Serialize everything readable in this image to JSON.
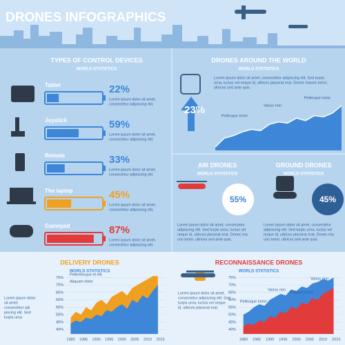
{
  "header": {
    "title": "DRONES INFOGRAPHICS"
  },
  "control_devices": {
    "title": "TYPES OF CONTROL DEVICES",
    "subtitle": "WORLD STATISTICS",
    "items": [
      {
        "name": "Tablet",
        "value": 22,
        "label": "22%",
        "color": "#3d86d8",
        "text": [
          "Lorem ipsum dolor sit amet,",
          "consectetur adipiscing elit."
        ]
      },
      {
        "name": "Joystick",
        "value": 59,
        "label": "59%",
        "color": "#3d86d8",
        "text": [
          "Lorem ipsum dolor sit amet,",
          "consectetur adipiscing elit."
        ]
      },
      {
        "name": "Remote",
        "value": 33,
        "label": "33%",
        "color": "#3d86d8",
        "text": [
          "Lorem ipsum dolor sit amet,",
          "consectetur adipiscing elit."
        ]
      },
      {
        "name": "The laptop",
        "value": 45,
        "label": "45%",
        "color": "#f0a020",
        "text": [
          "Lorem ipsum dolor sit amet,",
          "consectetur adipiscing elit."
        ]
      },
      {
        "name": "Gamepad",
        "value": 87,
        "label": "87%",
        "color": "#e23b3b",
        "text": [
          "Lorem ipsum dolor sit amet,",
          "consectetur adipiscing elit."
        ]
      }
    ]
  },
  "around_world": {
    "title": "DRONES AROUND THE WORLD",
    "subtitle": "WORLD STATISTICS",
    "text": [
      "Lorem ipsum dolor sit amet, consectetur adipiscing elit. Sed turpis",
      "urna, luctus vel neque id, ultrices placerat erat. Donec mauris tortor,",
      "ultrices sed ante quis."
    ],
    "label": "23%",
    "values": [
      20,
      34,
      38,
      44,
      48,
      46,
      56,
      60,
      58,
      66,
      62,
      70,
      68,
      74,
      86
    ],
    "annotations": [
      "Pellesque tortor",
      "Varius non",
      "Pellesque tortor"
    ]
  },
  "air": {
    "title": "AIR DRONES",
    "subtitle": "WORLD STATISTICS",
    "label": "55%",
    "text": [
      "Lorem ipsum dolor sit amet, consectetur",
      "adipiscing elit. Sed turpis urna, luctus vel",
      "neque id, ultrices placerat erat. Donec ma",
      "uris tortor, ultrices sed ante quis."
    ]
  },
  "ground": {
    "title": "GROUND DRONES",
    "subtitle": "WORLD STATISTICS",
    "label": "45%",
    "text": [
      "Lorem ipsum dolor sit amet, consectetur",
      "adipiscing elit. Sed turpis urna, luctus vel",
      "neque id, ultrices placerat erat. Donec ma",
      "uris tortor, ultrices sed ante quis."
    ]
  },
  "delivery": {
    "title": "DELIVERY DRONES",
    "subtitle": "WORLD STATISTICS",
    "text": [
      "Lorem ipsum dolor",
      "sit amet,",
      "consectetur adi",
      "piscing elit. Sed",
      "turpis urna"
    ],
    "annotations": [
      "Pellentesque et elit.",
      "Aliquam dolor"
    ],
    "chart": {
      "type": "area",
      "x": [
        1980,
        1982,
        1984,
        1986,
        1988,
        1990,
        1992,
        1994,
        1996,
        1998,
        2000,
        2002,
        2004,
        2006,
        2008,
        2010,
        2012,
        2014
      ],
      "series": [
        {
          "color": "#f0a020",
          "values": [
            48,
            52,
            50,
            55,
            53,
            58,
            60,
            57,
            62,
            64,
            66,
            63,
            68,
            70,
            72,
            74,
            76,
            76
          ]
        },
        {
          "color": "#3d86d8",
          "values": [
            44,
            46,
            45,
            48,
            47,
            50,
            49,
            53,
            52,
            55,
            57,
            54,
            60,
            58,
            63,
            61,
            66,
            70
          ]
        }
      ],
      "xlim": [
        1978,
        2017
      ],
      "xticks": [
        1980,
        1985,
        1990,
        1995,
        2000,
        2005,
        2010,
        2015
      ],
      "ylim": [
        37,
        77
      ],
      "yticks": [
        {
          "value": 40,
          "label": "40%"
        },
        {
          "value": 45,
          "label": "45%"
        },
        {
          "value": 50,
          "label": "50%"
        },
        {
          "value": 55,
          "label": "55%"
        },
        {
          "value": 60,
          "label": "60%"
        },
        {
          "value": 65,
          "label": "65%"
        },
        {
          "value": 70,
          "label": "70%"
        },
        {
          "value": 75,
          "label": "75%"
        }
      ]
    }
  },
  "recon": {
    "title": "RECONNAISSANCE DRONES",
    "subtitle": "WORLD STATISTICS",
    "text": [
      "Lorem ipsum dolor sit amet,",
      "consectetur adipiscing elit. Sed",
      "turpis urna, luctus vel neque",
      "id, ultrices placerat erat."
    ],
    "annotations": [
      "Pellesque tortor",
      "Varius non",
      "Pellente tortor",
      "Varius non"
    ],
    "chart": {
      "type": "area",
      "x": [
        1980,
        1982,
        1984,
        1986,
        1988,
        1990,
        1992,
        1994,
        1996,
        1998,
        2000,
        2002,
        2004,
        2006,
        2008,
        2010,
        2012,
        2014
      ],
      "series": [
        {
          "color": "#3d86d8",
          "values": [
            50,
            52,
            55,
            57,
            56,
            60,
            62,
            64,
            63,
            67,
            66,
            69,
            68,
            71,
            72,
            74,
            73,
            75
          ]
        },
        {
          "color": "#e23b3b",
          "values": [
            42,
            44,
            43,
            46,
            45,
            49,
            48,
            52,
            51,
            55,
            54,
            58,
            57,
            61,
            60,
            64,
            66,
            68
          ]
        }
      ],
      "xlim": [
        1978,
        2017
      ],
      "xticks": [
        1980,
        1985,
        1990,
        1995,
        2000,
        2005,
        2010,
        2015
      ],
      "ylim": [
        37,
        77
      ],
      "yticks": [
        {
          "value": 40,
          "label": "40%"
        },
        {
          "value": 45,
          "label": "45%"
        },
        {
          "value": 50,
          "label": "50%"
        },
        {
          "value": 55,
          "label": "55%"
        },
        {
          "value": 60,
          "label": "60%"
        },
        {
          "value": 65,
          "label": "65%"
        },
        {
          "value": 70,
          "label": "70%"
        },
        {
          "value": 75,
          "label": "75%"
        }
      ]
    }
  }
}
